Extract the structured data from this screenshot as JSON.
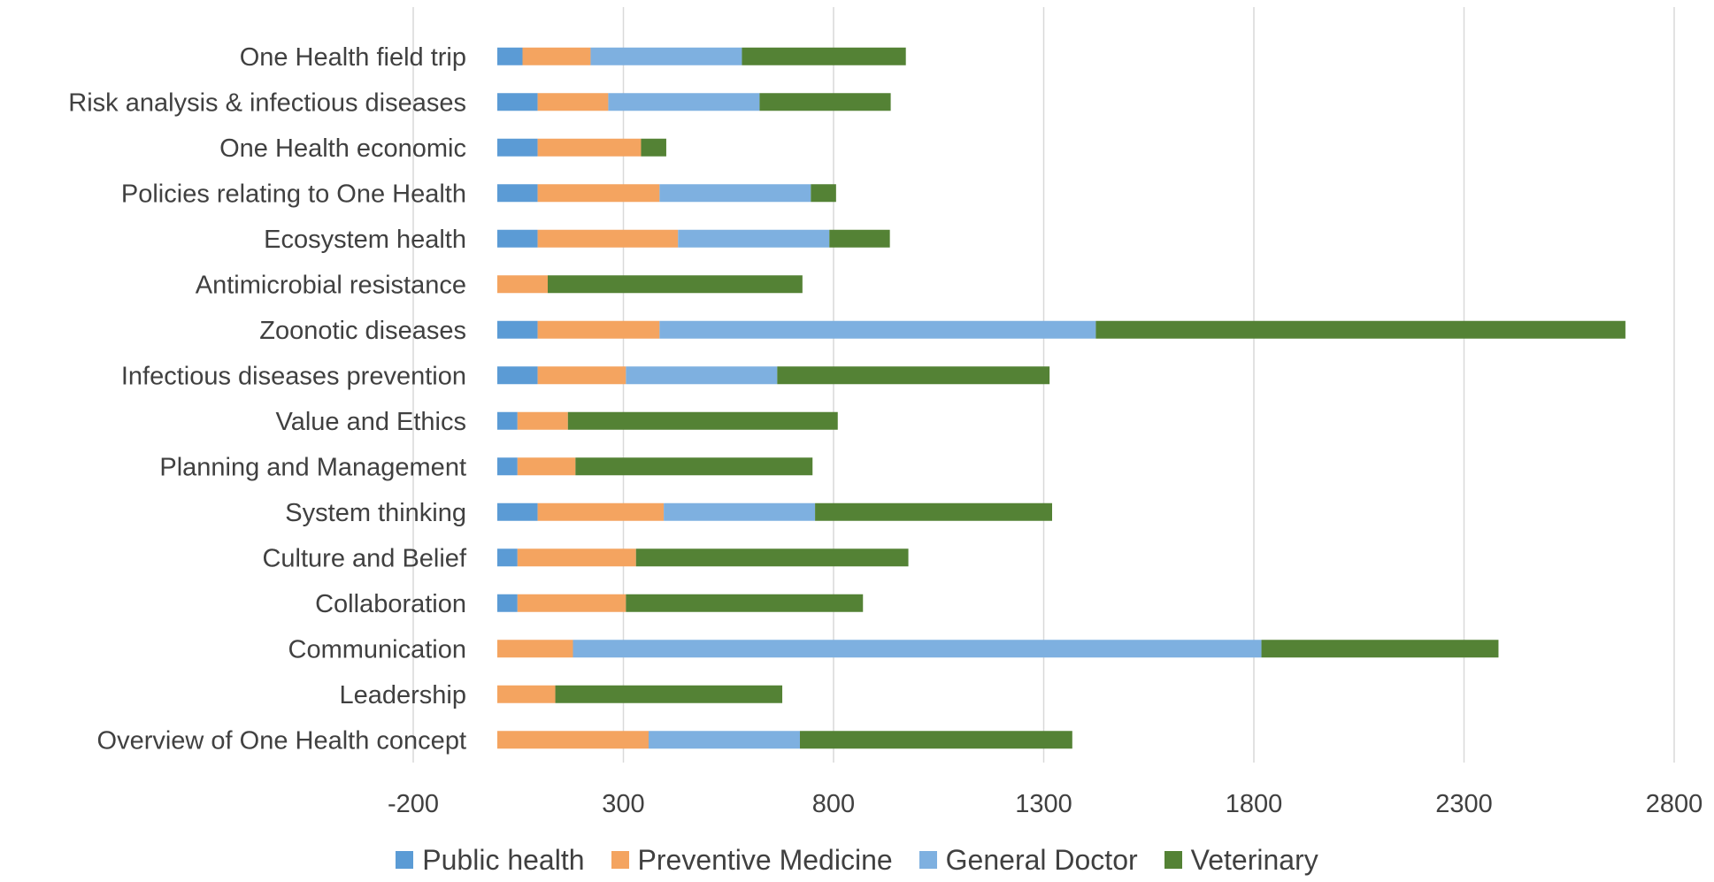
{
  "chart_data": {
    "type": "bar",
    "orientation": "horizontal",
    "stacked": true,
    "categories": [
      "One Health field trip",
      "Risk analysis & infectious diseases",
      "One Health economic",
      "Policies relating to One Health",
      "Ecosystem health",
      "Antimicrobial resistance",
      "Zoonotic diseases",
      "Infectious diseases prevention",
      "Value and Ethics",
      "Planning and Management",
      "System thinking",
      "Culture and Belief",
      "Collaboration",
      "Communication",
      "Leadership",
      "Overview of One Health concept"
    ],
    "series": [
      {
        "name": "Public health",
        "color": "#5b9bd5",
        "values": [
          60,
          96,
          96,
          96,
          96,
          0,
          96,
          96,
          48,
          48,
          96,
          48,
          48,
          0,
          0,
          0
        ]
      },
      {
        "name": "Preventive Medicine",
        "color": "#f4a460",
        "values": [
          162,
          168,
          246,
          290,
          334,
          120,
          290,
          210,
          120,
          138,
          300,
          282,
          258,
          180,
          138,
          360
        ]
      },
      {
        "name": "General Doctor",
        "color": "#7eb0e0",
        "values": [
          360,
          360,
          0,
          360,
          360,
          0,
          1038,
          360,
          0,
          0,
          360,
          0,
          0,
          1638,
          0,
          360
        ]
      },
      {
        "name": "Veterinary",
        "color": "#548235",
        "values": [
          390,
          312,
          60,
          60,
          144,
          606,
          1260,
          648,
          642,
          564,
          564,
          648,
          564,
          564,
          540,
          648
        ]
      }
    ],
    "x_ticks": [
      "-200",
      "300",
      "800",
      "1300",
      "1800",
      "2300",
      "2800"
    ],
    "xlim": [
      -200,
      2800
    ],
    "grid": true,
    "legend": "bottom"
  }
}
